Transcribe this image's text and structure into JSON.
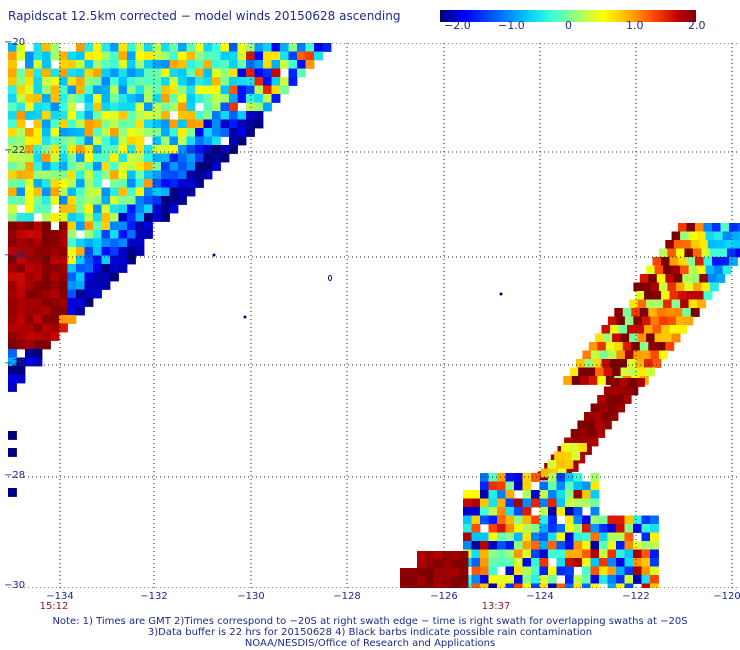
{
  "title": "Rapidscat 12.5km corrected − model winds 20150628 ascending",
  "colorbar": {
    "ticks": [
      "−2.0",
      "−1.0",
      "0",
      "1.0",
      "2.0"
    ],
    "range": [
      -2.0,
      2.0
    ],
    "colors": [
      "#00007a",
      "#0000ff",
      "#00c8ff",
      "#a0ff70",
      "#ffff00",
      "#ff4000",
      "#7a0000"
    ]
  },
  "axes": {
    "lat_ticks": [
      "−20",
      "−22",
      "−24",
      "−26",
      "−28",
      "−30"
    ],
    "lon_ticks": [
      "−134",
      "−132",
      "−130",
      "−128",
      "−126",
      "−124",
      "−122",
      "−120"
    ],
    "lat_range": [
      -30,
      -20
    ],
    "lon_range": [
      -134.8,
      -119.8
    ],
    "grid": "dotted"
  },
  "swath_times": [
    "15:12",
    "13:37"
  ],
  "notes": [
    "Note: 1) Times are GMT 2)Times correspond to −20S at right swath edge − time is right swath for overlapping swaths at −20S",
    "3)Data buffer is 22 hrs for 20150628 4) Black barbs indicate possible rain contamination",
    "NOAA/NESDIS/Office of Research and Applications"
  ]
}
